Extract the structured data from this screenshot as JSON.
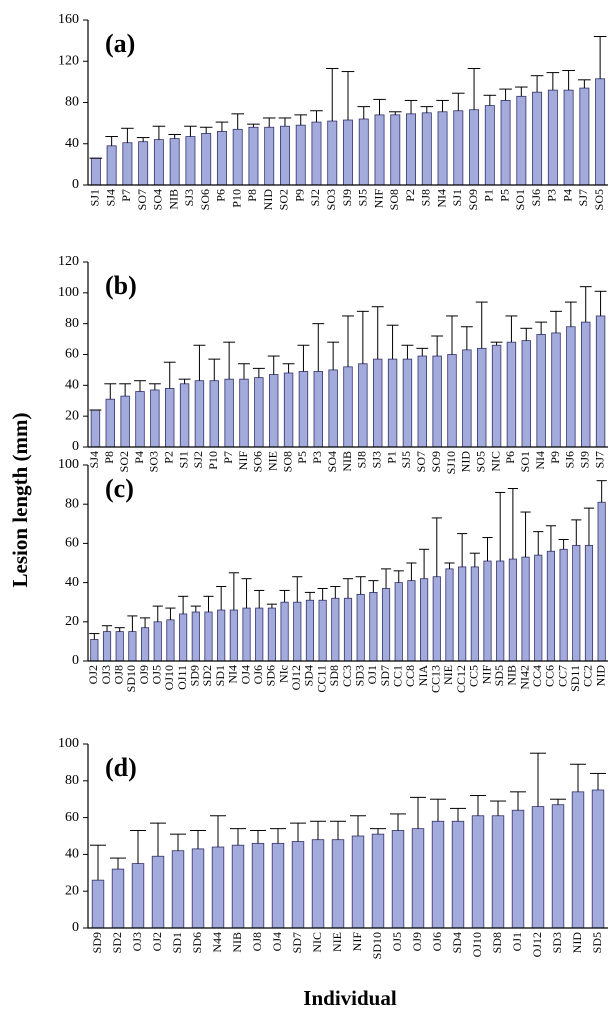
{
  "y_label": "Lesion length (mm)",
  "x_label": "Individual",
  "chart_data": [
    {
      "type": "bar",
      "panel_label": "(a)",
      "color": "#a3aadc",
      "categories": [
        "SJ1",
        "SJ4",
        "P7",
        "SO7",
        "SO4",
        "NIB",
        "SJ3",
        "SO6",
        "P6",
        "P10",
        "P8",
        "NID",
        "SO2",
        "P9",
        "SJ2",
        "SO3",
        "SJ9",
        "SJ5",
        "NIF",
        "SO8",
        "P2",
        "SJ8",
        "NI4",
        "SJ1",
        "SO9",
        "P1",
        "P5",
        "SO1",
        "SJ6",
        "P3",
        "P4",
        "SJ7",
        "SO5"
      ],
      "values": [
        26,
        38,
        41,
        42,
        44,
        45,
        47,
        50,
        52,
        54,
        56,
        56,
        57,
        58,
        61,
        62,
        63,
        64,
        68,
        68,
        69,
        70,
        71,
        72,
        73,
        77,
        82,
        86,
        90,
        92,
        92,
        94,
        103
      ],
      "errors": [
        0,
        9,
        14,
        4,
        13,
        4,
        10,
        6,
        9,
        15,
        3,
        9,
        8,
        10,
        11,
        51,
        47,
        12,
        15,
        3,
        13,
        6,
        11,
        17,
        40,
        10,
        11,
        9,
        16,
        17,
        19,
        8,
        41
      ],
      "ylim": [
        0,
        160
      ],
      "yticks": [
        0,
        40,
        80,
        120,
        160
      ]
    },
    {
      "type": "bar",
      "panel_label": "(b)",
      "color": "#a3aadc",
      "categories": [
        "SJ4",
        "P8",
        "SO2",
        "P4",
        "SO3",
        "P2",
        "SJ1",
        "SJ2",
        "P10",
        "P7",
        "NIF",
        "SO6",
        "NIE",
        "SO8",
        "P5",
        "P3",
        "SO4",
        "NIB",
        "SJ8",
        "SJ3",
        "P1",
        "SJ5",
        "SO7",
        "SO9",
        "SJ10",
        "NID",
        "SO5",
        "NIC",
        "P6",
        "SO1",
        "NI4",
        "P9",
        "SJ6",
        "SJ9",
        "SJ7"
      ],
      "values": [
        24,
        31,
        33,
        36,
        37,
        38,
        41,
        43,
        43,
        44,
        44,
        45,
        47,
        48,
        49,
        49,
        50,
        52,
        54,
        57,
        57,
        57,
        59,
        59,
        60,
        63,
        64,
        66,
        68,
        69,
        73,
        74,
        78,
        81,
        85
      ],
      "errors": [
        0,
        10,
        8,
        7,
        4,
        17,
        3,
        23,
        14,
        24,
        10,
        6,
        12,
        6,
        17,
        31,
        18,
        33,
        34,
        34,
        22,
        9,
        5,
        13,
        25,
        15,
        30,
        2,
        17,
        8,
        8,
        14,
        16,
        23,
        16
      ],
      "ylim": [
        0,
        120
      ],
      "yticks": [
        0,
        20,
        40,
        60,
        80,
        100,
        120
      ]
    },
    {
      "type": "bar",
      "panel_label": "(c)",
      "color": "#a3aadc",
      "categories": [
        "OJ2",
        "OJ3",
        "OJ8",
        "SD10",
        "OJ9",
        "OJ5",
        "OJ10",
        "OJ11",
        "SD9",
        "SD2",
        "SD1",
        "NI4",
        "OJ4",
        "OJ6",
        "SD6",
        "NIc",
        "OJ12",
        "SD4",
        "CC11",
        "SD8",
        "CC3",
        "SD3",
        "OJ1",
        "SD7",
        "CC1",
        "CC8",
        "NIA",
        "CC13",
        "NIE",
        "CC12",
        "CC5",
        "NIF",
        "SD5",
        "NIB",
        "NI42",
        "CC4",
        "CC6",
        "CC7",
        "SD11",
        "CC2",
        "NID"
      ],
      "values": [
        11,
        15,
        15,
        15,
        17,
        20,
        21,
        24,
        25,
        25,
        26,
        26,
        27,
        27,
        27,
        30,
        30,
        31,
        31,
        32,
        32,
        34,
        35,
        37,
        40,
        41,
        42,
        43,
        47,
        48,
        48,
        51,
        51,
        52,
        53,
        54,
        56,
        57,
        59,
        59,
        81
      ],
      "errors": [
        3,
        3,
        2,
        8,
        5,
        8,
        6,
        9,
        3,
        8,
        12,
        19,
        15,
        9,
        2,
        6,
        13,
        4,
        6,
        6,
        10,
        9,
        6,
        10,
        6,
        9,
        15,
        30,
        3,
        17,
        7,
        12,
        35,
        36,
        23,
        12,
        13,
        5,
        13,
        19,
        11
      ],
      "ylim": [
        0,
        100
      ],
      "yticks": [
        0,
        20,
        40,
        60,
        80,
        100
      ]
    },
    {
      "type": "bar",
      "panel_label": "(d)",
      "color": "#a3aadc",
      "categories": [
        "SD9",
        "SD2",
        "OJ3",
        "OJ2",
        "SD1",
        "SD6",
        "N44",
        "NIB",
        "OJ8",
        "OJ4",
        "SD7",
        "NIC",
        "NIE",
        "NIF",
        "SD10",
        "OJ5",
        "OJ9",
        "OJ6",
        "SD4",
        "OJ10",
        "SD8",
        "OJ1",
        "OJ12",
        "SD3",
        "NID",
        "SD5"
      ],
      "values": [
        26,
        32,
        35,
        39,
        42,
        43,
        44,
        45,
        46,
        46,
        47,
        48,
        48,
        50,
        51,
        53,
        54,
        58,
        58,
        61,
        61,
        64,
        66,
        67,
        74,
        75
      ],
      "errors": [
        19,
        6,
        18,
        18,
        9,
        10,
        17,
        9,
        7,
        8,
        10,
        10,
        10,
        11,
        3,
        9,
        17,
        12,
        7,
        11,
        8,
        10,
        29,
        3,
        15,
        9
      ],
      "ylim": [
        0,
        100
      ],
      "yticks": [
        0,
        20,
        40,
        60,
        80,
        100
      ]
    }
  ]
}
